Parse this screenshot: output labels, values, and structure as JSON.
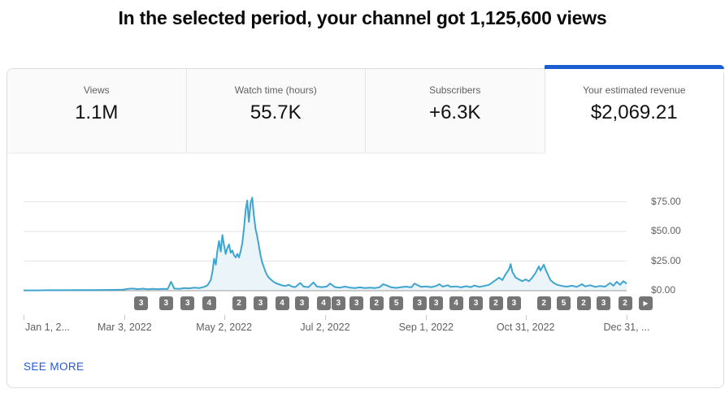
{
  "title": "In the selected period, your channel got 1,125,600 views",
  "tabs": [
    {
      "label": "Views",
      "value": "1.1M",
      "active": false
    },
    {
      "label": "Watch time (hours)",
      "value": "55.7K",
      "active": false
    },
    {
      "label": "Subscribers",
      "value": "+6.3K",
      "active": false
    },
    {
      "label": "Your estimated revenue",
      "value": "$2,069.21",
      "active": true
    }
  ],
  "see_more_label": "SEE MORE",
  "colors": {
    "accent_blue": "#1b5fd1",
    "link_blue": "#2558d6",
    "line_blue": "#3fa5cf",
    "area_fill": "#eaf4f9",
    "badge_gray": "#757575",
    "grid_gray": "#e6e6e6",
    "baseline_gray": "#9e9e9e",
    "muted_text": "#606060",
    "value_text": "#111111",
    "card_border": "#dddddd",
    "inactive_tab_bg": "#fafafa"
  },
  "chart_data": {
    "type": "area",
    "series_name": "Your estimated revenue",
    "y_axis_side": "right",
    "ylim": [
      0,
      85
    ],
    "y_gridlines": [
      0,
      25,
      50,
      75
    ],
    "y_ticks": [
      {
        "label": "$75.00",
        "value": 75
      },
      {
        "label": "$50.00",
        "value": 50
      },
      {
        "label": "$25.00",
        "value": 25
      },
      {
        "label": "$0.00",
        "value": 0
      }
    ],
    "x_ticks": [
      {
        "label": "Jan 1, 2...",
        "day": 0
      },
      {
        "label": "Mar 3, 2022",
        "day": 61
      },
      {
        "label": "May 2, 2022",
        "day": 121
      },
      {
        "label": "Jul 2, 2022",
        "day": 182
      },
      {
        "label": "Sep 1, 2022",
        "day": 243
      },
      {
        "label": "Oct 31, 2022",
        "day": 303
      },
      {
        "label": "Dec 31, ...",
        "day": 364
      }
    ],
    "x_range_days": [
      0,
      364
    ],
    "points": [
      [
        0,
        0.3
      ],
      [
        8,
        0.3
      ],
      [
        16,
        0.4
      ],
      [
        24,
        0.4
      ],
      [
        32,
        0.5
      ],
      [
        40,
        0.5
      ],
      [
        48,
        0.6
      ],
      [
        54,
        0.7
      ],
      [
        60,
        0.9
      ],
      [
        63,
        1.5
      ],
      [
        66,
        1.8
      ],
      [
        69,
        1.3
      ],
      [
        72,
        1.7
      ],
      [
        75,
        1.2
      ],
      [
        78,
        1.6
      ],
      [
        81,
        1.3
      ],
      [
        84,
        1.5
      ],
      [
        87,
        1.4
      ],
      [
        89,
        7.5
      ],
      [
        91,
        1.8
      ],
      [
        94,
        1.6
      ],
      [
        97,
        2.2
      ],
      [
        100,
        2.0
      ],
      [
        103,
        2.6
      ],
      [
        106,
        2.2
      ],
      [
        109,
        3.2
      ],
      [
        111,
        4.5
      ],
      [
        113,
        9
      ],
      [
        114,
        16
      ],
      [
        115,
        27
      ],
      [
        116,
        22
      ],
      [
        117,
        34
      ],
      [
        118,
        42
      ],
      [
        119,
        33
      ],
      [
        120,
        47
      ],
      [
        121,
        38
      ],
      [
        122,
        31
      ],
      [
        123,
        36
      ],
      [
        124,
        39
      ],
      [
        125,
        32
      ],
      [
        126,
        34
      ],
      [
        127,
        30
      ],
      [
        128,
        28
      ],
      [
        129,
        31
      ],
      [
        130,
        28
      ],
      [
        131,
        33
      ],
      [
        132,
        40
      ],
      [
        133,
        52
      ],
      [
        134,
        68
      ],
      [
        135,
        76
      ],
      [
        136,
        58
      ],
      [
        137,
        74
      ],
      [
        138,
        78.5
      ],
      [
        139,
        64
      ],
      [
        140,
        52
      ],
      [
        141,
        46
      ],
      [
        142,
        38
      ],
      [
        143,
        30
      ],
      [
        144,
        24
      ],
      [
        145,
        20
      ],
      [
        146,
        16
      ],
      [
        147,
        13
      ],
      [
        148,
        11
      ],
      [
        150,
        8.5
      ],
      [
        152,
        6.5
      ],
      [
        154,
        5.5
      ],
      [
        156,
        4.5
      ],
      [
        158,
        4
      ],
      [
        160,
        5
      ],
      [
        162,
        3.5
      ],
      [
        164,
        3
      ],
      [
        167,
        6.5
      ],
      [
        169,
        3.5
      ],
      [
        172,
        3
      ],
      [
        175,
        7
      ],
      [
        177,
        3.5
      ],
      [
        180,
        3
      ],
      [
        183,
        3.5
      ],
      [
        185,
        6
      ],
      [
        188,
        3
      ],
      [
        191,
        2.5
      ],
      [
        194,
        3.5
      ],
      [
        197,
        2.5
      ],
      [
        200,
        2.2
      ],
      [
        203,
        2.8
      ],
      [
        206,
        2.2
      ],
      [
        209,
        2.6
      ],
      [
        212,
        2.2
      ],
      [
        215,
        3
      ],
      [
        217,
        5.5
      ],
      [
        219,
        4.5
      ],
      [
        222,
        2.8
      ],
      [
        225,
        2.4
      ],
      [
        228,
        3
      ],
      [
        231,
        3.4
      ],
      [
        234,
        2.8
      ],
      [
        236,
        6
      ],
      [
        238,
        4.5
      ],
      [
        240,
        3.2
      ],
      [
        243,
        3.6
      ],
      [
        246,
        3
      ],
      [
        249,
        4
      ],
      [
        251,
        5.5
      ],
      [
        253,
        3.4
      ],
      [
        256,
        4.6
      ],
      [
        258,
        3.2
      ],
      [
        261,
        3.6
      ],
      [
        264,
        2.8
      ],
      [
        267,
        3.8
      ],
      [
        270,
        3
      ],
      [
        272,
        4.4
      ],
      [
        275,
        3.2
      ],
      [
        278,
        4
      ],
      [
        281,
        5
      ],
      [
        284,
        8
      ],
      [
        287,
        11
      ],
      [
        289,
        9
      ],
      [
        291,
        14
      ],
      [
        293,
        18
      ],
      [
        294,
        22.5
      ],
      [
        295,
        16
      ],
      [
        297,
        11
      ],
      [
        299,
        9.5
      ],
      [
        301,
        8
      ],
      [
        303,
        9.5
      ],
      [
        305,
        8
      ],
      [
        307,
        11
      ],
      [
        309,
        15
      ],
      [
        311,
        20.5
      ],
      [
        312,
        17
      ],
      [
        314,
        22
      ],
      [
        315,
        18
      ],
      [
        316,
        15
      ],
      [
        318,
        9
      ],
      [
        320,
        6.5
      ],
      [
        322,
        5
      ],
      [
        325,
        4
      ],
      [
        328,
        3.4
      ],
      [
        331,
        4.2
      ],
      [
        334,
        3.2
      ],
      [
        337,
        5.5
      ],
      [
        339,
        3.6
      ],
      [
        342,
        4.6
      ],
      [
        345,
        3.2
      ],
      [
        348,
        4
      ],
      [
        351,
        3.4
      ],
      [
        354,
        6.5
      ],
      [
        356,
        4.2
      ],
      [
        358,
        7.5
      ],
      [
        360,
        5
      ],
      [
        362,
        8
      ],
      [
        364,
        6
      ]
    ],
    "video_markers": [
      [
        71,
        "3"
      ],
      [
        86,
        "3"
      ],
      [
        99,
        "3"
      ],
      [
        112,
        "4"
      ],
      [
        130,
        "2"
      ],
      [
        143,
        "3"
      ],
      [
        156,
        "4"
      ],
      [
        168,
        "3"
      ],
      [
        181,
        "4"
      ],
      [
        190,
        "3"
      ],
      [
        201,
        "3"
      ],
      [
        213,
        "2"
      ],
      [
        225,
        "5"
      ],
      [
        239,
        "3"
      ],
      [
        249,
        "3"
      ],
      [
        261,
        "4"
      ],
      [
        273,
        "3"
      ],
      [
        285,
        "2"
      ],
      [
        296,
        "3"
      ],
      [
        314,
        "2"
      ],
      [
        326,
        "5"
      ],
      [
        338,
        "2"
      ],
      [
        350,
        "3"
      ],
      [
        363,
        "2"
      ]
    ],
    "markers_next_icon": "▶"
  }
}
